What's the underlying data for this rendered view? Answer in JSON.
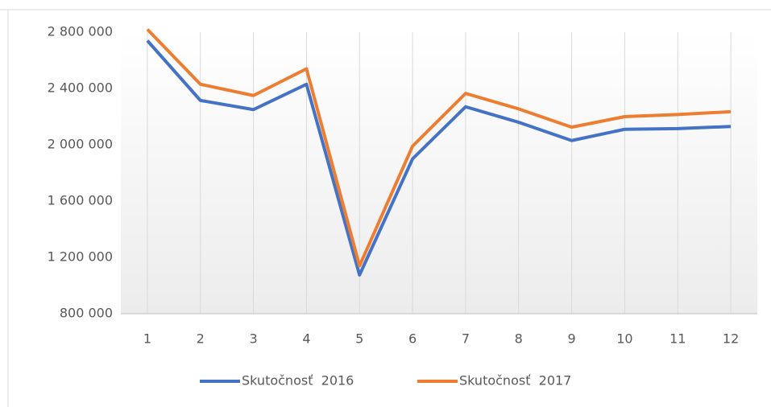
{
  "chart_data": {
    "type": "line",
    "categories": [
      "1",
      "2",
      "3",
      "4",
      "5",
      "6",
      "7",
      "8",
      "9",
      "10",
      "11",
      "12"
    ],
    "series": [
      {
        "name": "Skutočnosť  2016",
        "color": "#4472c4",
        "values": [
          2740000,
          2315000,
          2250000,
          2430000,
          1075000,
          1900000,
          2270000,
          2160000,
          2030000,
          2110000,
          2115000,
          2130000
        ]
      },
      {
        "name": "Skutočnosť  2017",
        "color": "#ed7d31",
        "values": [
          2820000,
          2430000,
          2350000,
          2540000,
          1140000,
          1990000,
          2365000,
          2255000,
          2125000,
          2200000,
          2215000,
          2235000
        ]
      }
    ],
    "ylim": [
      800000,
      2800000
    ],
    "yticks": [
      {
        "value": 800000,
        "label": "800 000"
      },
      {
        "value": 1200000,
        "label": "1 200 000"
      },
      {
        "value": 1600000,
        "label": "1 600 000"
      },
      {
        "value": 2000000,
        "label": "2 000 000"
      },
      {
        "value": 2400000,
        "label": "2 400 000"
      },
      {
        "value": 2800000,
        "label": "2 800 000"
      }
    ],
    "grid": true,
    "legend": "bottom"
  }
}
